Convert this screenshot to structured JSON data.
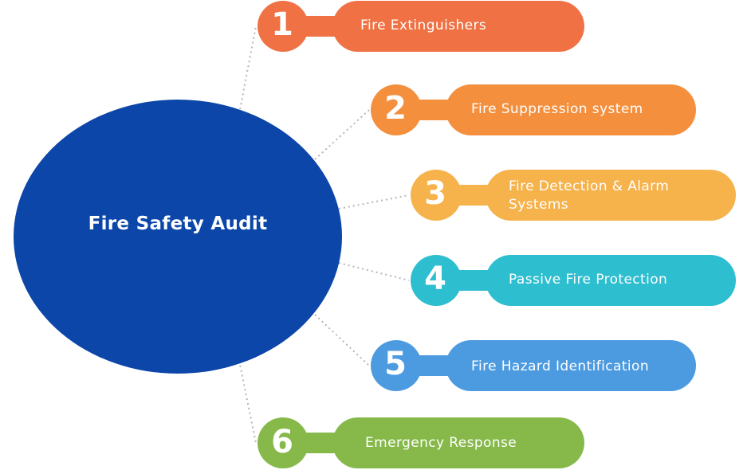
{
  "center": {
    "title": "Fire Safety Audit",
    "color": "#0b46a8"
  },
  "items": [
    {
      "number": "1",
      "label": "Fire Extinguishers",
      "color": "#ef7144"
    },
    {
      "number": "2",
      "label": "Fire Suppression system",
      "color": "#f38f3d"
    },
    {
      "number": "3",
      "label": "Fire Detection & Alarm Systems",
      "color": "#f6b24b"
    },
    {
      "number": "4",
      "label": "Passive Fire Protection",
      "color": "#2dbecf"
    },
    {
      "number": "5",
      "label": "Fire Hazard Identification",
      "color": "#4c9be0"
    },
    {
      "number": "6",
      "label": "Emergency Response",
      "color": "#86b94a"
    }
  ]
}
